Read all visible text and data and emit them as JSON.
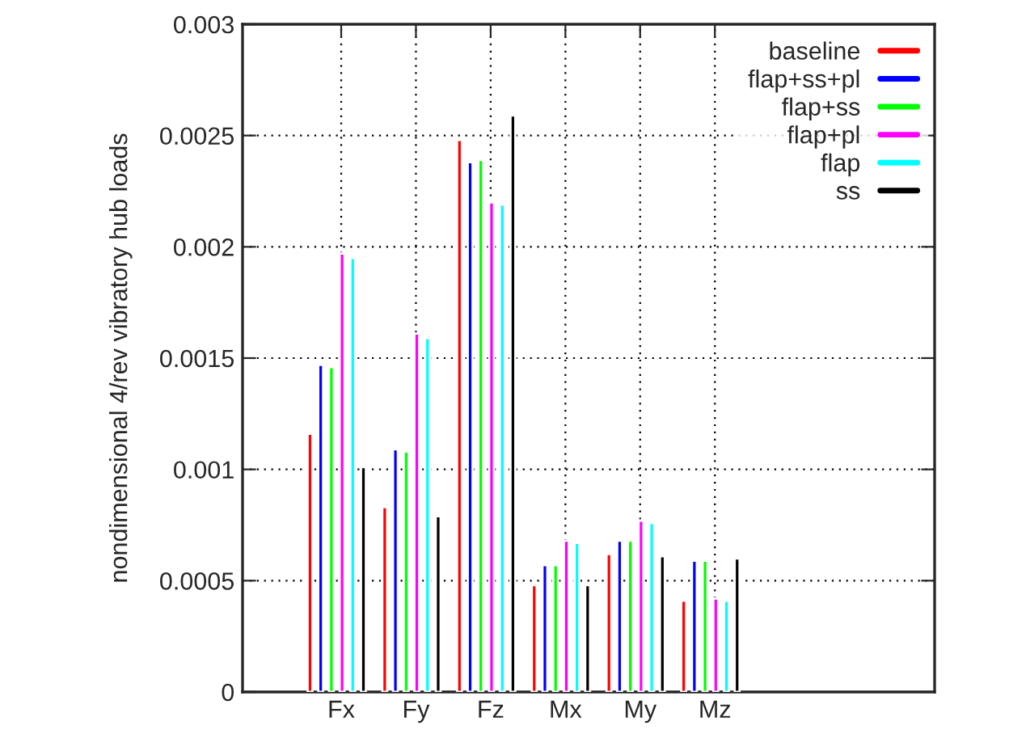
{
  "chart_data": {
    "type": "bar",
    "ylabel": "nondimensional 4/rev vibratory hub loads",
    "categories": [
      "Fx",
      "Fy",
      "Fz",
      "Mx",
      "My",
      "Mz"
    ],
    "series": [
      {
        "name": "baseline",
        "color": "#ff0000",
        "values": [
          0.00116,
          0.00083,
          0.00248,
          0.00048,
          0.00062,
          0.00041
        ]
      },
      {
        "name": "flap+ss+pl",
        "color": "#0000ff",
        "values": [
          0.00147,
          0.00109,
          0.00238,
          0.00057,
          0.00068,
          0.00059
        ]
      },
      {
        "name": "flap+ss",
        "color": "#00ff00",
        "values": [
          0.00146,
          0.00108,
          0.00239,
          0.00057,
          0.00068,
          0.00059
        ]
      },
      {
        "name": "flap+pl",
        "color": "#ff00ff",
        "values": [
          0.00197,
          0.00161,
          0.0022,
          0.00068,
          0.00077,
          0.00042
        ]
      },
      {
        "name": "flap",
        "color": "#00ffff",
        "values": [
          0.00195,
          0.00159,
          0.00219,
          0.00067,
          0.00076,
          0.00041
        ]
      },
      {
        "name": "ss",
        "color": "#000000",
        "values": [
          0.00101,
          0.00079,
          0.00259,
          0.00048,
          0.00061,
          0.0006
        ]
      }
    ],
    "ylim": [
      0,
      0.003
    ],
    "yticks": [
      0,
      0.0005,
      0.001,
      0.0015,
      0.002,
      0.0025,
      0.003
    ],
    "grid": true,
    "legend": "top right"
  }
}
